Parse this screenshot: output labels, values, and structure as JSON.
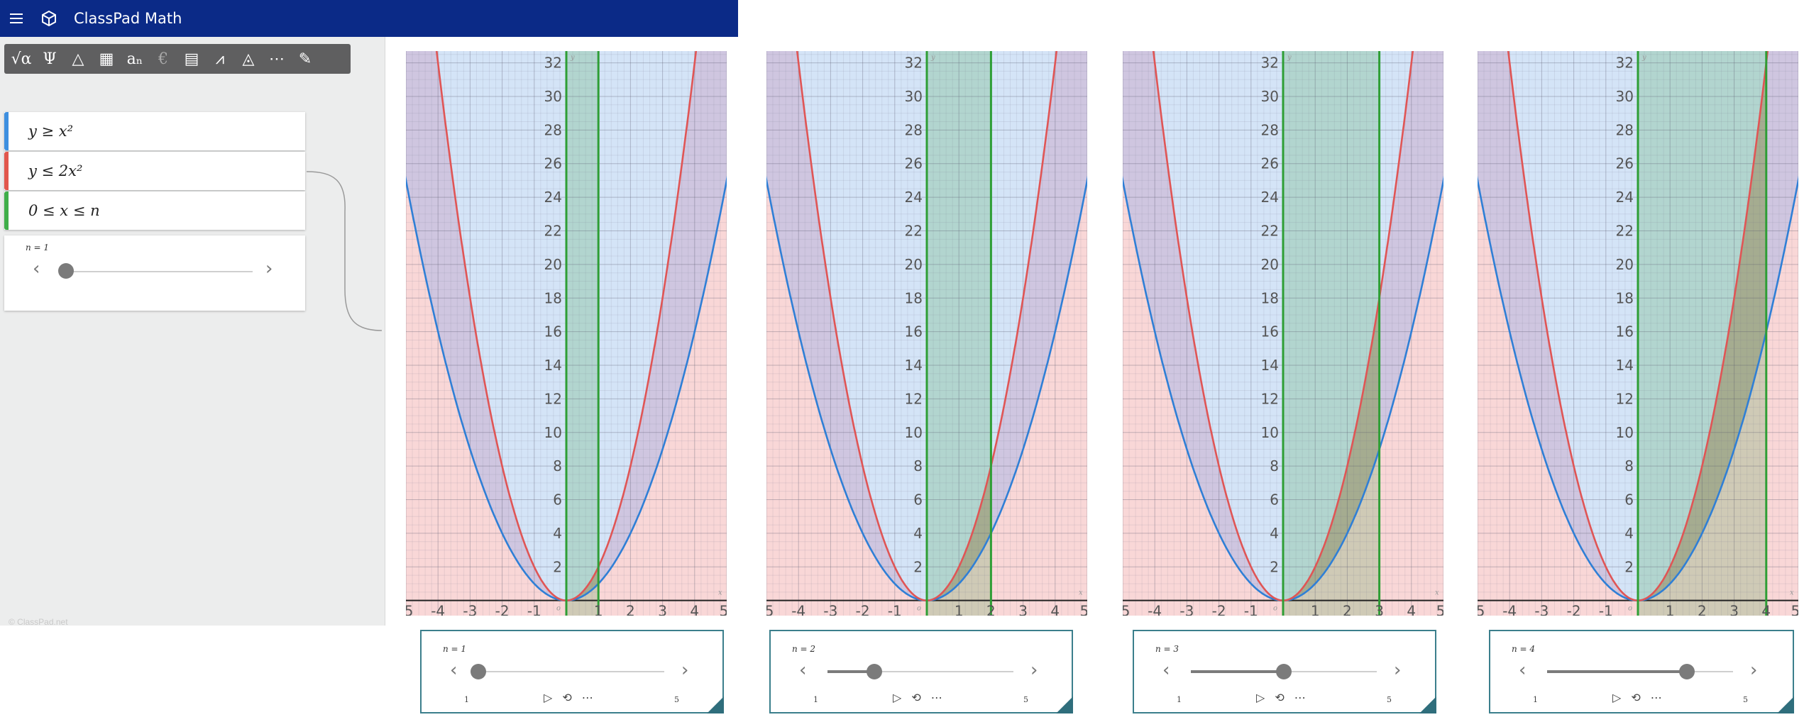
{
  "app": {
    "title": "ClassPad Math"
  },
  "toolbar": {
    "tools": [
      {
        "icon": "sqrt-alpha-icon",
        "glyph": "√α"
      },
      {
        "icon": "psi-icon",
        "glyph": "Ψ"
      },
      {
        "icon": "geometry-icon",
        "glyph": "△"
      },
      {
        "icon": "table-icon",
        "glyph": "▦"
      },
      {
        "icon": "sequence-icon",
        "glyph": "aₙ"
      },
      {
        "icon": "currency-icon",
        "glyph": "€"
      },
      {
        "icon": "calculator-icon",
        "glyph": "▤"
      },
      {
        "icon": "distribution-icon",
        "glyph": "⩘"
      },
      {
        "icon": "3d-icon",
        "glyph": "◬"
      },
      {
        "icon": "number-line-icon",
        "glyph": "⋯"
      },
      {
        "icon": "note-edit-icon",
        "glyph": "✎"
      }
    ]
  },
  "expressions": [
    {
      "text": "y ≥ x²",
      "color": "#3d8fe0"
    },
    {
      "text": "y ≤ 2x²",
      "color": "#e2574c"
    },
    {
      "text": "0 ≤ x ≤ n",
      "color": "#3fae49"
    }
  ],
  "slider": {
    "label": "n = 1",
    "value": 1,
    "min": 1,
    "max": 5
  },
  "colors": {
    "blue": "#2f7fd6",
    "red": "#e05555",
    "green": "#2e9e35"
  },
  "graphs": [
    {
      "n_label": "n = 1",
      "n": 1,
      "min_label": "1",
      "max_label": "5"
    },
    {
      "n_label": "n = 2",
      "n": 2,
      "min_label": "1",
      "max_label": "5"
    },
    {
      "n_label": "n = 3",
      "n": 3,
      "min_label": "1",
      "max_label": "5"
    },
    {
      "n_label": "n = 4",
      "n": 4,
      "min_label": "1",
      "max_label": "5"
    }
  ],
  "axis": {
    "x_ticks": [
      "5",
      "-4",
      "-3",
      "-2",
      "-1",
      "1",
      "2",
      "3",
      "4",
      "5"
    ],
    "y_ticks": [
      "2",
      "4",
      "6",
      "8",
      "10",
      "12",
      "14",
      "16",
      "18",
      "20",
      "22",
      "24",
      "26",
      "28",
      "30",
      "32"
    ],
    "origin_label": "o",
    "x_label": "x",
    "y_label": "y"
  }
}
